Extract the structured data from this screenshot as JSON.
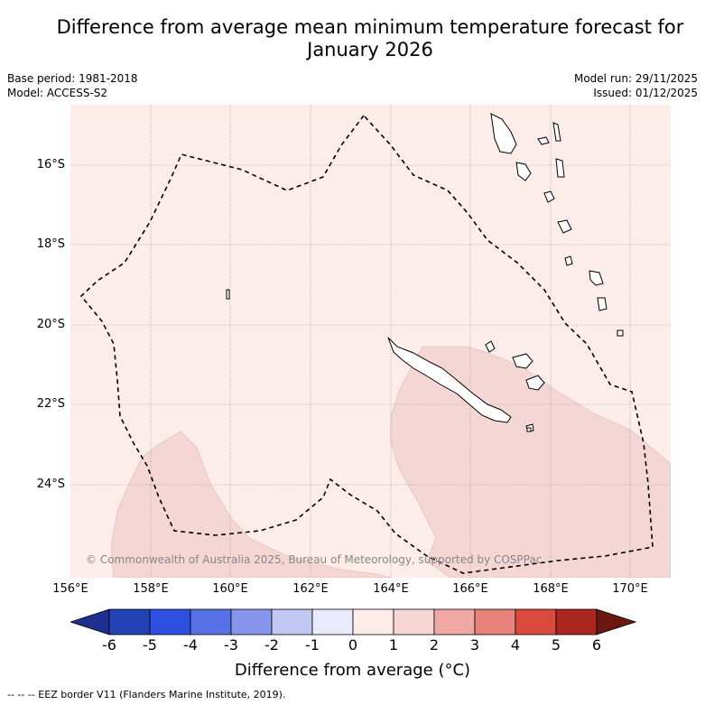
{
  "title_line1": "Difference from average mean minimum temperature forecast for",
  "title_line2": "January 2026",
  "base_period": "Base period: 1981-2018",
  "model": "Model: ACCESS-S2",
  "model_run": "Model run: 29/11/2025",
  "issued": "Issued: 01/12/2025",
  "lat_labels": [
    "16°S",
    "18°S",
    "20°S",
    "22°S",
    "24°S"
  ],
  "lon_labels": [
    "156°E",
    "158°E",
    "160°E",
    "162°E",
    "164°E",
    "166°E",
    "168°E",
    "170°E"
  ],
  "copyright": "© Commonwealth of Australia 2025, Bureau of Meteorology, supported by COSPPac",
  "colorbar": {
    "ticks": [
      "-6",
      "-5",
      "-4",
      "-3",
      "-2",
      "-1",
      "0",
      "1",
      "2",
      "3",
      "4",
      "5",
      "6"
    ],
    "colors": [
      "#1f2f8f",
      "#2342b4",
      "#2e4fe0",
      "#5672e6",
      "#8696ec",
      "#c1c8f4",
      "#e8ebfb",
      "#fdecea",
      "#f5d6d4",
      "#efa8a4",
      "#e8837c",
      "#db4a3f",
      "#a9271f",
      "#6b1812"
    ],
    "label": "Difference from average (°C)"
  },
  "footnote": "--  --  -- EEZ border V11 (Flanders Marine Institute, 2019).",
  "legend_icon": "dashed-line-icon"
}
